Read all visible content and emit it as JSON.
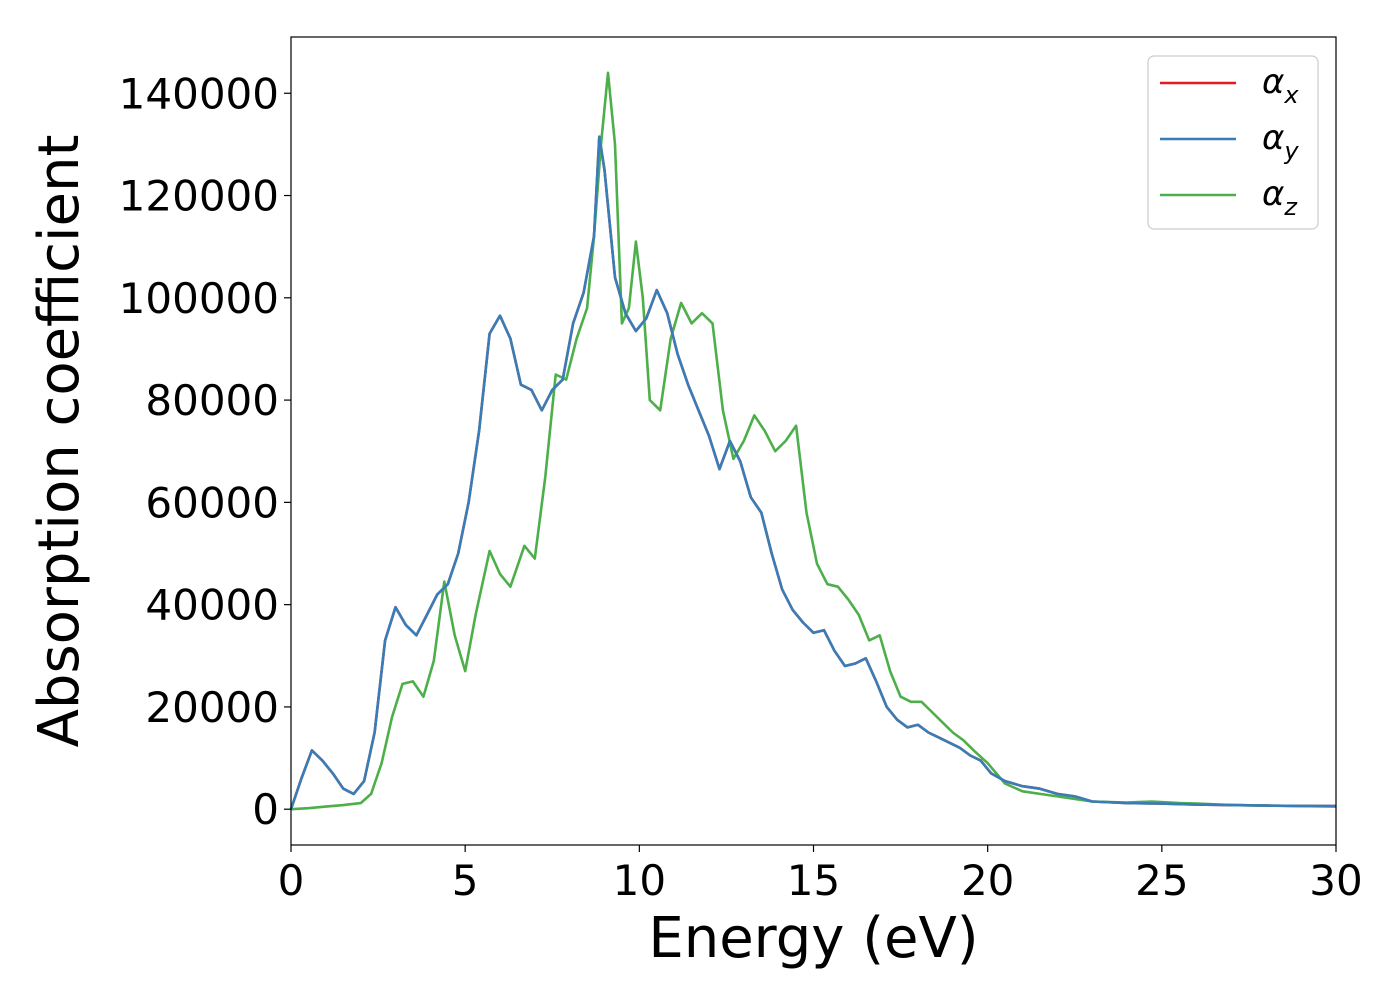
{
  "chart_data": {
    "type": "line",
    "title": "",
    "xlabel": "Energy (eV)",
    "ylabel": "Absorption coefficient",
    "xlim": [
      0,
      30
    ],
    "ylim": [
      -7000,
      151000
    ],
    "xticks": [
      0,
      5,
      10,
      15,
      20,
      25,
      30
    ],
    "yticks": [
      0,
      20000,
      40000,
      60000,
      80000,
      100000,
      120000,
      140000
    ],
    "xtick_labels": [
      "0",
      "5",
      "10",
      "15",
      "20",
      "25",
      "30"
    ],
    "ytick_labels": [
      "0",
      "20000",
      "40000",
      "60000",
      "80000",
      "100000",
      "120000",
      "140000"
    ],
    "grid": false,
    "legend_position": "top-right",
    "series": [
      {
        "name": "αx",
        "symbol": "α",
        "subscript": "x",
        "color": "#e41a1c",
        "x": [
          0,
          0.3,
          0.6,
          0.9,
          1.2,
          1.5,
          1.8,
          2.1,
          2.4,
          2.7,
          3.0,
          3.3,
          3.6,
          3.9,
          4.2,
          4.5,
          4.8,
          5.1,
          5.4,
          5.7,
          6.0,
          6.3,
          6.6,
          6.9,
          7.2,
          7.5,
          7.8,
          8.1,
          8.4,
          8.7,
          8.85,
          9.0,
          9.3,
          9.6,
          9.9,
          10.2,
          10.5,
          10.8,
          11.1,
          11.4,
          11.7,
          12.0,
          12.3,
          12.6,
          12.9,
          13.2,
          13.5,
          13.8,
          14.1,
          14.4,
          14.7,
          15.0,
          15.3,
          15.6,
          15.9,
          16.2,
          16.5,
          16.8,
          17.1,
          17.4,
          17.7,
          18.0,
          18.3,
          18.6,
          18.9,
          19.2,
          19.5,
          19.8,
          20.1,
          20.5,
          21.0,
          21.5,
          22.0,
          22.5,
          23.0,
          24.0,
          25.0,
          26.0,
          27.0,
          28.0,
          29.0,
          30.0
        ],
        "y": [
          0,
          6000,
          11500,
          9500,
          7000,
          4000,
          3000,
          5500,
          15000,
          33000,
          39500,
          36000,
          34000,
          38000,
          42000,
          44000,
          50000,
          60000,
          74000,
          93000,
          96500,
          92000,
          83000,
          82000,
          78000,
          82000,
          84000,
          95000,
          101000,
          112000,
          131500,
          125000,
          104000,
          97000,
          93500,
          96000,
          101500,
          97000,
          89000,
          83000,
          78000,
          73000,
          66500,
          72000,
          68000,
          61000,
          58000,
          50000,
          43000,
          39000,
          36500,
          34500,
          35000,
          31000,
          28000,
          28500,
          29500,
          25000,
          20000,
          17500,
          16000,
          16500,
          15000,
          14000,
          13000,
          12000,
          10500,
          9500,
          7000,
          5500,
          4500,
          4000,
          3000,
          2500,
          1500,
          1200,
          1100,
          900,
          800,
          700,
          650,
          600
        ]
      },
      {
        "name": "αy",
        "symbol": "α",
        "subscript": "y",
        "color": "#377eb8",
        "x": [
          0,
          0.3,
          0.6,
          0.9,
          1.2,
          1.5,
          1.8,
          2.1,
          2.4,
          2.7,
          3.0,
          3.3,
          3.6,
          3.9,
          4.2,
          4.5,
          4.8,
          5.1,
          5.4,
          5.7,
          6.0,
          6.3,
          6.6,
          6.9,
          7.2,
          7.5,
          7.8,
          8.1,
          8.4,
          8.7,
          8.85,
          9.0,
          9.3,
          9.6,
          9.9,
          10.2,
          10.5,
          10.8,
          11.1,
          11.4,
          11.7,
          12.0,
          12.3,
          12.6,
          12.9,
          13.2,
          13.5,
          13.8,
          14.1,
          14.4,
          14.7,
          15.0,
          15.3,
          15.6,
          15.9,
          16.2,
          16.5,
          16.8,
          17.1,
          17.4,
          17.7,
          18.0,
          18.3,
          18.6,
          18.9,
          19.2,
          19.5,
          19.8,
          20.1,
          20.5,
          21.0,
          21.5,
          22.0,
          22.5,
          23.0,
          24.0,
          25.0,
          26.0,
          27.0,
          28.0,
          29.0,
          30.0
        ],
        "y": [
          0,
          6000,
          11500,
          9500,
          7000,
          4000,
          3000,
          5500,
          15000,
          33000,
          39500,
          36000,
          34000,
          38000,
          42000,
          44000,
          50000,
          60000,
          74000,
          93000,
          96500,
          92000,
          83000,
          82000,
          78000,
          82000,
          84000,
          95000,
          101000,
          112000,
          131500,
          125000,
          104000,
          97000,
          93500,
          96000,
          101500,
          97000,
          89000,
          83000,
          78000,
          73000,
          66500,
          72000,
          68000,
          61000,
          58000,
          50000,
          43000,
          39000,
          36500,
          34500,
          35000,
          31000,
          28000,
          28500,
          29500,
          25000,
          20000,
          17500,
          16000,
          16500,
          15000,
          14000,
          13000,
          12000,
          10500,
          9500,
          7000,
          5500,
          4500,
          4000,
          3000,
          2500,
          1500,
          1200,
          1100,
          900,
          800,
          700,
          650,
          600
        ]
      },
      {
        "name": "αz",
        "symbol": "α",
        "subscript": "z",
        "color": "#4daf4a",
        "x": [
          0,
          0.5,
          1.0,
          1.5,
          2.0,
          2.3,
          2.6,
          2.9,
          3.2,
          3.5,
          3.8,
          4.1,
          4.4,
          4.7,
          5.0,
          5.3,
          5.7,
          6.0,
          6.3,
          6.7,
          7.0,
          7.3,
          7.6,
          7.9,
          8.2,
          8.5,
          8.7,
          8.9,
          9.1,
          9.3,
          9.5,
          9.7,
          9.9,
          10.1,
          10.3,
          10.6,
          10.9,
          11.2,
          11.5,
          11.8,
          12.1,
          12.4,
          12.7,
          13.0,
          13.3,
          13.6,
          13.9,
          14.2,
          14.5,
          14.8,
          15.1,
          15.4,
          15.7,
          16.0,
          16.3,
          16.6,
          16.9,
          17.2,
          17.5,
          17.8,
          18.1,
          18.4,
          18.7,
          19.0,
          19.3,
          19.6,
          20.0,
          20.5,
          21.0,
          21.5,
          22.0,
          22.5,
          23.0,
          24.0,
          24.7,
          25.5,
          26.0,
          27.0,
          28.0,
          29.0,
          30.0
        ],
        "y": [
          0,
          200,
          500,
          800,
          1200,
          3000,
          9000,
          18000,
          24500,
          25000,
          22000,
          29000,
          44500,
          34000,
          27000,
          38000,
          50500,
          46000,
          43500,
          51500,
          49000,
          65000,
          85000,
          84000,
          92000,
          98000,
          112000,
          130000,
          144000,
          130000,
          95000,
          98000,
          111000,
          100000,
          80000,
          78000,
          92000,
          99000,
          95000,
          97000,
          95000,
          78000,
          68500,
          72000,
          77000,
          74000,
          70000,
          72000,
          75000,
          58000,
          48000,
          44000,
          43500,
          41000,
          38000,
          33000,
          34000,
          27000,
          22000,
          21000,
          21000,
          19000,
          17000,
          15000,
          13500,
          11500,
          9000,
          5000,
          3500,
          3000,
          2500,
          2000,
          1500,
          1300,
          1500,
          1200,
          1100,
          800,
          700,
          600,
          500
        ]
      }
    ]
  }
}
